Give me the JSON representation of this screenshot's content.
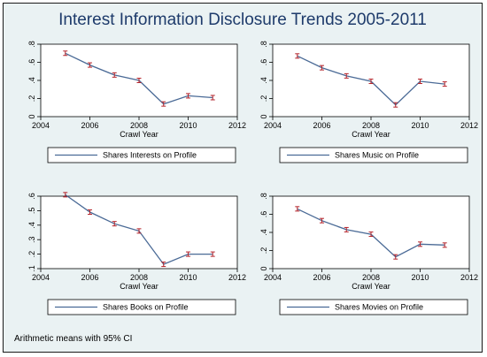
{
  "title": "Interest Information Disclosure Trends 2005-2011",
  "footnote": "Arithmetic means with 95% CI",
  "colors": {
    "line": "#4a6a96",
    "ci": "#b4232a",
    "plot_bg": "#ffffff",
    "frame_bg": "#eaf2f3",
    "title": "#1e3b6b"
  },
  "chart_data": [
    {
      "type": "line",
      "xlabel": "Crawl Year",
      "xlim": [
        2004,
        2012
      ],
      "ylim": [
        0,
        0.8
      ],
      "xticks": [
        "2004",
        "2006",
        "2008",
        "2010",
        "2012"
      ],
      "yticks": [
        "0",
        ".2",
        ".4",
        ".6",
        ".8"
      ],
      "series": [
        {
          "name": "Shares Interests on Profile",
          "x": [
            2005,
            2006,
            2007,
            2008,
            2009,
            2010,
            2011
          ],
          "y": [
            0.7,
            0.57,
            0.46,
            0.4,
            0.14,
            0.23,
            0.21
          ]
        }
      ]
    },
    {
      "type": "line",
      "xlabel": "Crawl Year",
      "xlim": [
        2004,
        2012
      ],
      "ylim": [
        0,
        0.8
      ],
      "xticks": [
        "2004",
        "2006",
        "2008",
        "2010",
        "2012"
      ],
      "yticks": [
        "0",
        ".2",
        ".4",
        ".6",
        ".8"
      ],
      "series": [
        {
          "name": "Shares Music on Profile",
          "x": [
            2005,
            2006,
            2007,
            2008,
            2009,
            2010,
            2011
          ],
          "y": [
            0.67,
            0.54,
            0.45,
            0.39,
            0.13,
            0.39,
            0.36
          ]
        }
      ]
    },
    {
      "type": "line",
      "xlabel": "Crawl Year",
      "xlim": [
        2004,
        2012
      ],
      "ylim": [
        0.1,
        0.6
      ],
      "xticks": [
        "2004",
        "2006",
        "2008",
        "2010",
        "2012"
      ],
      "yticks": [
        ".1",
        ".2",
        ".3",
        ".4",
        ".5",
        ".6"
      ],
      "series": [
        {
          "name": "Shares Books on Profile",
          "x": [
            2005,
            2006,
            2007,
            2008,
            2009,
            2010,
            2011
          ],
          "y": [
            0.61,
            0.49,
            0.41,
            0.36,
            0.13,
            0.2,
            0.2
          ]
        }
      ]
    },
    {
      "type": "line",
      "xlabel": "Crawl Year",
      "xlim": [
        2004,
        2012
      ],
      "ylim": [
        0,
        0.8
      ],
      "xticks": [
        "2004",
        "2006",
        "2008",
        "2010",
        "2012"
      ],
      "yticks": [
        "0",
        ".2",
        ".4",
        ".6",
        ".8"
      ],
      "series": [
        {
          "name": "Shares Movies on Profile",
          "x": [
            2005,
            2006,
            2007,
            2008,
            2009,
            2010,
            2011
          ],
          "y": [
            0.66,
            0.53,
            0.43,
            0.38,
            0.13,
            0.27,
            0.26
          ]
        }
      ]
    }
  ]
}
